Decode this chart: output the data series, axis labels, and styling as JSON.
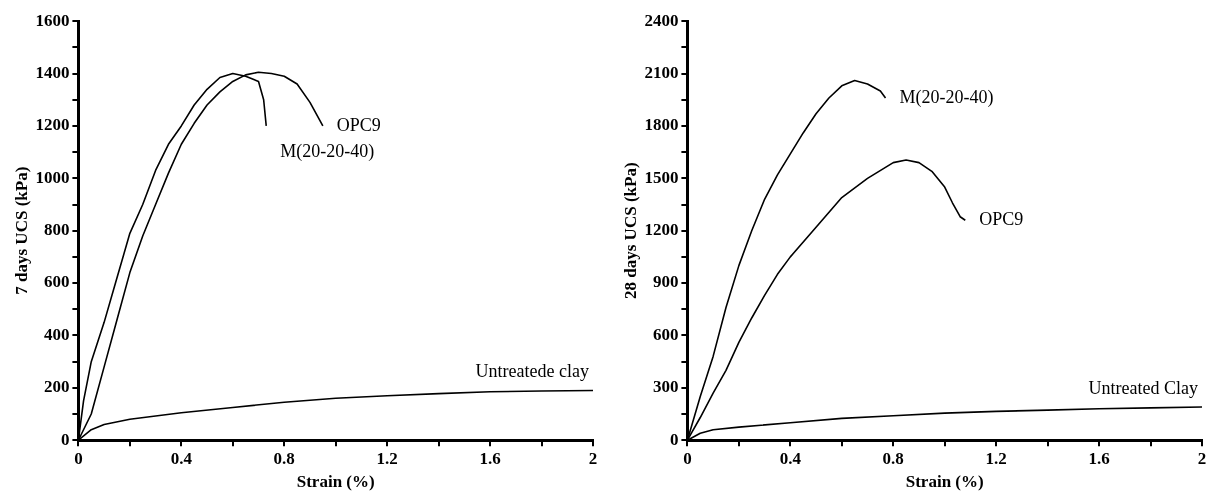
{
  "chart_data": [
    {
      "type": "line",
      "xlabel": "Strain (%)",
      "ylabel": "7 days UCS (kPa)",
      "xlim": [
        0,
        2
      ],
      "ylim": [
        0,
        1600
      ],
      "xticks": [
        0,
        {
          "value": 0.2,
          "label": null
        },
        0.4,
        {
          "value": 0.6,
          "label": null
        },
        0.8,
        {
          "value": 1.0,
          "label": null
        },
        1.2,
        {
          "value": 1.4,
          "label": null
        },
        1.6,
        {
          "value": 1.8,
          "label": null
        },
        2
      ],
      "yticks": [
        0,
        {
          "value": 100,
          "label": null
        },
        200,
        {
          "value": 300,
          "label": null
        },
        400,
        {
          "value": 500,
          "label": null
        },
        600,
        {
          "value": 700,
          "label": null
        },
        800,
        {
          "value": 900,
          "label": null
        },
        1000,
        {
          "value": 1100,
          "label": null
        },
        1200,
        {
          "value": 1300,
          "label": null
        },
        1400,
        {
          "value": 1500,
          "label": null
        },
        1600
      ],
      "grid": false,
      "legend": false,
      "marker": "none",
      "line_style": "solid",
      "series": [
        {
          "name": "M(20-20-40)",
          "color": "#000000",
          "x": [
            0,
            0.02,
            0.05,
            0.1,
            0.15,
            0.2,
            0.25,
            0.3,
            0.35,
            0.4,
            0.45,
            0.5,
            0.55,
            0.6,
            0.65,
            0.7,
            0.72,
            0.73
          ],
          "values": [
            0,
            150,
            300,
            450,
            620,
            790,
            900,
            1030,
            1130,
            1200,
            1280,
            1340,
            1385,
            1400,
            1390,
            1370,
            1300,
            1200
          ]
        },
        {
          "name": "OPC9",
          "color": "#000000",
          "x": [
            0,
            0.05,
            0.1,
            0.15,
            0.2,
            0.25,
            0.3,
            0.35,
            0.4,
            0.45,
            0.5,
            0.55,
            0.6,
            0.65,
            0.7,
            0.75,
            0.8,
            0.85,
            0.9,
            0.95
          ],
          "values": [
            0,
            100,
            280,
            460,
            640,
            780,
            900,
            1020,
            1130,
            1210,
            1280,
            1330,
            1370,
            1395,
            1405,
            1400,
            1390,
            1360,
            1290,
            1200
          ]
        },
        {
          "name": "Untreatede clay",
          "color": "#000000",
          "x": [
            0,
            0.05,
            0.1,
            0.2,
            0.4,
            0.6,
            0.8,
            1.0,
            1.2,
            1.4,
            1.6,
            1.8,
            2
          ],
          "values": [
            0,
            40,
            60,
            80,
            105,
            125,
            145,
            160,
            170,
            178,
            185,
            188,
            190
          ]
        }
      ]
    },
    {
      "type": "line",
      "xlabel": "Strain (%)",
      "ylabel": "28 days UCS (kPa)",
      "xlim": [
        0,
        2
      ],
      "ylim": [
        0,
        2400
      ],
      "xticks": [
        0,
        {
          "value": 0.2,
          "label": null
        },
        0.4,
        {
          "value": 0.6,
          "label": null
        },
        0.8,
        {
          "value": 1.0,
          "label": null
        },
        1.2,
        {
          "value": 1.4,
          "label": null
        },
        1.6,
        {
          "value": 1.8,
          "label": null
        },
        2
      ],
      "yticks": [
        0,
        {
          "value": 150,
          "label": null
        },
        300,
        {
          "value": 450,
          "label": null
        },
        600,
        {
          "value": 750,
          "label": null
        },
        900,
        {
          "value": 1050,
          "label": null
        },
        1200,
        {
          "value": 1350,
          "label": null
        },
        1500,
        {
          "value": 1650,
          "label": null
        },
        1800,
        {
          "value": 1950,
          "label": null
        },
        2100,
        {
          "value": 2250,
          "label": null
        },
        2400
      ],
      "grid": false,
      "legend": false,
      "marker": "none",
      "line_style": "solid",
      "series": [
        {
          "name": "M(20-20-40)",
          "color": "#000000",
          "x": [
            0,
            0.05,
            0.1,
            0.15,
            0.2,
            0.25,
            0.3,
            0.35,
            0.4,
            0.45,
            0.5,
            0.55,
            0.6,
            0.65,
            0.7,
            0.75,
            0.77
          ],
          "values": [
            0,
            250,
            480,
            760,
            1000,
            1200,
            1380,
            1520,
            1640,
            1760,
            1870,
            1960,
            2030,
            2060,
            2040,
            2000,
            1960
          ]
        },
        {
          "name": "OPC9",
          "color": "#000000",
          "x": [
            0,
            0.05,
            0.1,
            0.15,
            0.2,
            0.25,
            0.3,
            0.35,
            0.4,
            0.5,
            0.6,
            0.7,
            0.8,
            0.85,
            0.9,
            0.95,
            1.0,
            1.03,
            1.06,
            1.08
          ],
          "values": [
            0,
            130,
            270,
            400,
            560,
            700,
            830,
            950,
            1050,
            1220,
            1390,
            1500,
            1590,
            1605,
            1590,
            1540,
            1450,
            1360,
            1280,
            1260
          ]
        },
        {
          "name": "Untreated Clay",
          "color": "#000000",
          "x": [
            0,
            0.05,
            0.1,
            0.2,
            0.4,
            0.6,
            0.8,
            1.0,
            1.2,
            1.4,
            1.6,
            1.8,
            2
          ],
          "values": [
            0,
            40,
            60,
            75,
            100,
            125,
            140,
            155,
            165,
            172,
            180,
            185,
            190
          ]
        }
      ]
    }
  ]
}
